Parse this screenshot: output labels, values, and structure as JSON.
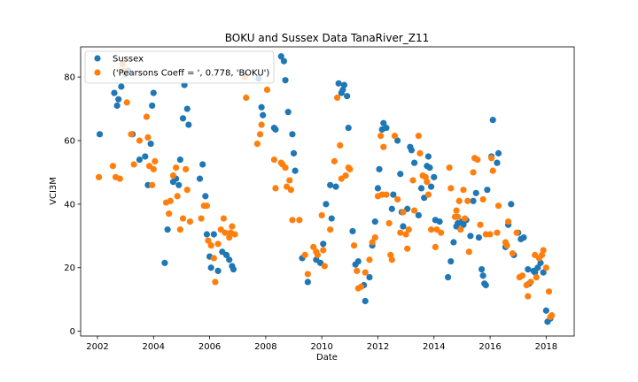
{
  "chart_data": {
    "type": "scatter",
    "title": "BOKU and Sussex Data TanaRiver_Z11",
    "xlabel": "Date",
    "ylabel": "VCI3M",
    "xlim": [
      2001.4,
      2019.0
    ],
    "ylim": [
      -1.5,
      89.5
    ],
    "xticks": [
      2002,
      2004,
      2006,
      2008,
      2010,
      2012,
      2014,
      2016,
      2018
    ],
    "xtick_labels": [
      "2002",
      "2004",
      "2006",
      "2008",
      "2010",
      "2012",
      "2014",
      "2016",
      "2018"
    ],
    "yticks": [
      0,
      20,
      40,
      60,
      80
    ],
    "ytick_labels": [
      "0",
      "20",
      "40",
      "60",
      "80"
    ],
    "grid": false,
    "legend_position": "top-left",
    "series": [
      {
        "name": "Sussex",
        "color": "#1f77b4",
        "points": [
          [
            2002.08,
            62
          ],
          [
            2002.6,
            75
          ],
          [
            2002.7,
            71
          ],
          [
            2002.75,
            73
          ],
          [
            2002.85,
            77
          ],
          [
            2003.0,
            81
          ],
          [
            2003.1,
            82
          ],
          [
            2003.25,
            62
          ],
          [
            2003.5,
            54
          ],
          [
            2003.7,
            55
          ],
          [
            2003.8,
            46
          ],
          [
            2003.9,
            59
          ],
          [
            2003.95,
            71
          ],
          [
            2004.0,
            75
          ],
          [
            2004.4,
            21.5
          ],
          [
            2004.5,
            32
          ],
          [
            2004.7,
            47
          ],
          [
            2004.8,
            48
          ],
          [
            2004.9,
            46
          ],
          [
            2004.95,
            54
          ],
          [
            2005.05,
            67
          ],
          [
            2005.1,
            77.5
          ],
          [
            2005.2,
            70
          ],
          [
            2005.25,
            65
          ],
          [
            2005.65,
            48
          ],
          [
            2005.75,
            52.5
          ],
          [
            2005.85,
            42.5
          ],
          [
            2005.9,
            30.5
          ],
          [
            2006.0,
            23.5
          ],
          [
            2006.05,
            20
          ],
          [
            2006.15,
            30.5
          ],
          [
            2006.3,
            19
          ],
          [
            2006.45,
            25
          ],
          [
            2006.6,
            24
          ],
          [
            2006.7,
            22.5
          ],
          [
            2006.8,
            20.5
          ],
          [
            2006.85,
            19.5
          ],
          [
            2007.25,
            80.5
          ],
          [
            2007.75,
            79.5
          ],
          [
            2007.85,
            70.5
          ],
          [
            2007.9,
            68
          ],
          [
            2008.3,
            64
          ],
          [
            2008.35,
            63.5
          ],
          [
            2008.55,
            86.5
          ],
          [
            2008.65,
            85
          ],
          [
            2008.7,
            79
          ],
          [
            2008.8,
            69
          ],
          [
            2008.95,
            62
          ],
          [
            2009.0,
            56
          ],
          [
            2009.05,
            50.5
          ],
          [
            2009.3,
            23
          ],
          [
            2009.5,
            15.5
          ],
          [
            2009.8,
            22.5
          ],
          [
            2009.95,
            21.5
          ],
          [
            2010.05,
            27.5
          ],
          [
            2010.15,
            40
          ],
          [
            2010.3,
            46
          ],
          [
            2010.35,
            35.5
          ],
          [
            2010.5,
            45.5
          ],
          [
            2010.6,
            78
          ],
          [
            2010.7,
            75
          ],
          [
            2010.75,
            76
          ],
          [
            2010.8,
            77.5
          ],
          [
            2010.9,
            74
          ],
          [
            2010.95,
            64
          ],
          [
            2011.1,
            31.5
          ],
          [
            2011.2,
            21
          ],
          [
            2011.3,
            22
          ],
          [
            2011.5,
            14.5
          ],
          [
            2011.55,
            9.5
          ],
          [
            2011.7,
            17
          ],
          [
            2011.8,
            27
          ],
          [
            2011.9,
            34.5
          ],
          [
            2012.0,
            45
          ],
          [
            2012.05,
            51
          ],
          [
            2012.15,
            63.5
          ],
          [
            2012.2,
            65.5
          ],
          [
            2012.3,
            64
          ],
          [
            2012.5,
            38.5
          ],
          [
            2012.55,
            43
          ],
          [
            2012.7,
            60
          ],
          [
            2012.8,
            49.5
          ],
          [
            2012.85,
            37.5
          ],
          [
            2012.9,
            33
          ],
          [
            2013.05,
            38.5
          ],
          [
            2013.15,
            58
          ],
          [
            2013.2,
            57
          ],
          [
            2013.3,
            53
          ],
          [
            2013.45,
            36.5
          ],
          [
            2013.55,
            45
          ],
          [
            2013.65,
            42
          ],
          [
            2013.75,
            52
          ],
          [
            2013.8,
            55
          ],
          [
            2013.85,
            51.5
          ],
          [
            2013.9,
            45.5
          ],
          [
            2014.0,
            48.5
          ],
          [
            2014.05,
            35
          ],
          [
            2014.2,
            34.5
          ],
          [
            2014.5,
            17
          ],
          [
            2014.6,
            22
          ],
          [
            2014.7,
            28
          ],
          [
            2014.8,
            33
          ],
          [
            2014.85,
            34
          ],
          [
            2015.0,
            34.5
          ],
          [
            2015.05,
            33.5
          ],
          [
            2015.15,
            35
          ],
          [
            2015.3,
            30
          ],
          [
            2015.4,
            41
          ],
          [
            2015.5,
            43.5
          ],
          [
            2015.6,
            29.5
          ],
          [
            2015.7,
            19.5
          ],
          [
            2015.75,
            17.5
          ],
          [
            2015.8,
            15
          ],
          [
            2015.85,
            14.5
          ],
          [
            2015.9,
            44.5
          ],
          [
            2016.05,
            55
          ],
          [
            2016.1,
            66.5
          ],
          [
            2016.25,
            53
          ],
          [
            2016.3,
            56
          ],
          [
            2016.55,
            26.5
          ],
          [
            2016.65,
            33.5
          ],
          [
            2016.75,
            40
          ],
          [
            2016.85,
            24
          ],
          [
            2017.0,
            31
          ],
          [
            2017.1,
            29
          ],
          [
            2017.2,
            29.5
          ],
          [
            2017.35,
            19.5
          ],
          [
            2017.4,
            15
          ],
          [
            2017.55,
            19
          ],
          [
            2017.6,
            18.5
          ],
          [
            2017.7,
            20
          ],
          [
            2017.8,
            21.5
          ],
          [
            2017.9,
            18.5
          ],
          [
            2018.0,
            6.5
          ],
          [
            2018.05,
            3
          ],
          [
            2018.15,
            4
          ]
        ]
      },
      {
        "name": "('Pearsons Coeff = ', 0.778, 'BOKU')",
        "color": "#ff7f0e",
        "points": [
          [
            2002.05,
            48.5
          ],
          [
            2002.55,
            52
          ],
          [
            2002.65,
            48.5
          ],
          [
            2002.8,
            48
          ],
          [
            2002.9,
            84
          ],
          [
            2002.95,
            82
          ],
          [
            2003.05,
            72
          ],
          [
            2003.2,
            62
          ],
          [
            2003.3,
            52.5
          ],
          [
            2003.5,
            60
          ],
          [
            2003.75,
            67.5
          ],
          [
            2003.8,
            61
          ],
          [
            2003.85,
            52
          ],
          [
            2003.95,
            46
          ],
          [
            2004.0,
            51
          ],
          [
            2004.05,
            53.5
          ],
          [
            2004.45,
            40.5
          ],
          [
            2004.55,
            37
          ],
          [
            2004.6,
            41
          ],
          [
            2004.7,
            49
          ],
          [
            2004.8,
            51.5
          ],
          [
            2004.85,
            42.5
          ],
          [
            2004.95,
            32
          ],
          [
            2005.05,
            35.5
          ],
          [
            2005.15,
            51
          ],
          [
            2005.2,
            44.5
          ],
          [
            2005.3,
            34.5
          ],
          [
            2005.7,
            35.5
          ],
          [
            2005.8,
            39.5
          ],
          [
            2005.9,
            39.5
          ],
          [
            2005.95,
            28.5
          ],
          [
            2006.05,
            27
          ],
          [
            2006.15,
            23
          ],
          [
            2006.2,
            15.5
          ],
          [
            2006.3,
            27.5
          ],
          [
            2006.4,
            32
          ],
          [
            2006.5,
            35.5
          ],
          [
            2006.55,
            31
          ],
          [
            2006.7,
            29.5
          ],
          [
            2006.75,
            31
          ],
          [
            2006.8,
            33
          ],
          [
            2006.9,
            30.5
          ],
          [
            2007.25,
            80
          ],
          [
            2007.3,
            73.5
          ],
          [
            2007.7,
            59
          ],
          [
            2007.8,
            62
          ],
          [
            2007.85,
            65
          ],
          [
            2008.05,
            76
          ],
          [
            2008.3,
            54
          ],
          [
            2008.35,
            45
          ],
          [
            2008.55,
            53
          ],
          [
            2008.6,
            52.5
          ],
          [
            2008.7,
            51.5
          ],
          [
            2008.75,
            45.5
          ],
          [
            2008.85,
            47.5
          ],
          [
            2008.9,
            44.5
          ],
          [
            2008.95,
            35
          ],
          [
            2009.2,
            35
          ],
          [
            2009.4,
            24
          ],
          [
            2009.5,
            18
          ],
          [
            2009.7,
            26.5
          ],
          [
            2009.8,
            25
          ],
          [
            2009.85,
            24
          ],
          [
            2010.0,
            36.5
          ],
          [
            2010.05,
            25.5
          ],
          [
            2010.1,
            20.5
          ],
          [
            2010.3,
            32
          ],
          [
            2010.45,
            53.5
          ],
          [
            2010.55,
            73.5
          ],
          [
            2010.65,
            58.5
          ],
          [
            2010.7,
            48
          ],
          [
            2010.85,
            49
          ],
          [
            2010.95,
            51.5
          ],
          [
            2011.0,
            51
          ],
          [
            2011.15,
            27
          ],
          [
            2011.25,
            19
          ],
          [
            2011.3,
            13.5
          ],
          [
            2011.4,
            14
          ],
          [
            2011.55,
            18.5
          ],
          [
            2011.7,
            22.5
          ],
          [
            2011.8,
            28
          ],
          [
            2011.9,
            29.5
          ],
          [
            2012.0,
            42.5
          ],
          [
            2012.1,
            61.5
          ],
          [
            2012.15,
            43
          ],
          [
            2012.2,
            58
          ],
          [
            2012.3,
            43
          ],
          [
            2012.4,
            34
          ],
          [
            2012.45,
            24
          ],
          [
            2012.5,
            22.5
          ],
          [
            2012.6,
            61.5
          ],
          [
            2012.7,
            41.5
          ],
          [
            2012.8,
            31
          ],
          [
            2012.9,
            37.5
          ],
          [
            2013.0,
            30.5
          ],
          [
            2013.05,
            26
          ],
          [
            2013.1,
            32
          ],
          [
            2013.25,
            47.5
          ],
          [
            2013.3,
            38
          ],
          [
            2013.45,
            61.5
          ],
          [
            2013.5,
            56
          ],
          [
            2013.6,
            49
          ],
          [
            2013.7,
            48.5
          ],
          [
            2013.75,
            47
          ],
          [
            2013.8,
            43
          ],
          [
            2013.9,
            32
          ],
          [
            2014.05,
            26.5
          ],
          [
            2014.1,
            32
          ],
          [
            2014.25,
            31
          ],
          [
            2014.55,
            51.5
          ],
          [
            2014.6,
            45
          ],
          [
            2014.75,
            36
          ],
          [
            2014.8,
            38
          ],
          [
            2014.85,
            36
          ],
          [
            2014.9,
            41
          ],
          [
            2014.95,
            32
          ],
          [
            2015.05,
            44.5
          ],
          [
            2015.1,
            35.5
          ],
          [
            2015.2,
            41
          ],
          [
            2015.25,
            25
          ],
          [
            2015.4,
            50
          ],
          [
            2015.45,
            54.5
          ],
          [
            2015.55,
            54
          ],
          [
            2015.65,
            33.5
          ],
          [
            2015.75,
            41.5
          ],
          [
            2015.85,
            30.5
          ],
          [
            2016.0,
            30.5
          ],
          [
            2016.05,
            54.5
          ],
          [
            2016.1,
            50.5
          ],
          [
            2016.25,
            31
          ],
          [
            2016.3,
            39.5
          ],
          [
            2016.55,
            28
          ],
          [
            2016.6,
            27
          ],
          [
            2016.65,
            34.5
          ],
          [
            2016.8,
            24.5
          ],
          [
            2016.95,
            31
          ],
          [
            2017.05,
            17
          ],
          [
            2017.15,
            17.5
          ],
          [
            2017.3,
            14.5
          ],
          [
            2017.35,
            11
          ],
          [
            2017.45,
            15.5
          ],
          [
            2017.6,
            24
          ],
          [
            2017.65,
            17
          ],
          [
            2017.75,
            23
          ],
          [
            2017.85,
            24
          ],
          [
            2017.9,
            25.5
          ],
          [
            2018.0,
            20
          ],
          [
            2018.1,
            12.5
          ],
          [
            2018.15,
            4.5
          ],
          [
            2018.2,
            5
          ]
        ]
      }
    ]
  }
}
